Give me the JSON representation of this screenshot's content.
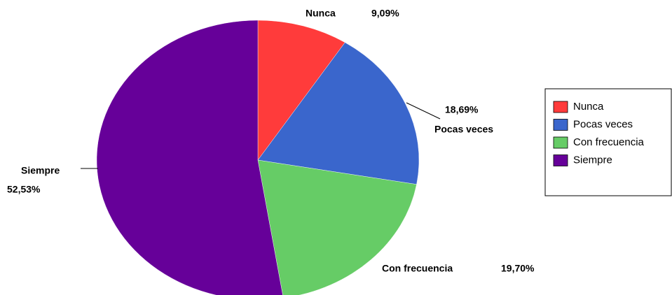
{
  "chart_data": {
    "type": "pie",
    "categories": [
      "Nunca",
      "Pocas veces",
      "Con frecuencia",
      "Siempre"
    ],
    "values": [
      9.09,
      18.69,
      19.7,
      52.53
    ],
    "value_labels": [
      "9,09%",
      "18,69%",
      "19,70%",
      "52,53%"
    ],
    "colors": [
      "#ff3b3b",
      "#3a66cc",
      "#66cc66",
      "#660099"
    ],
    "legend": "right"
  }
}
